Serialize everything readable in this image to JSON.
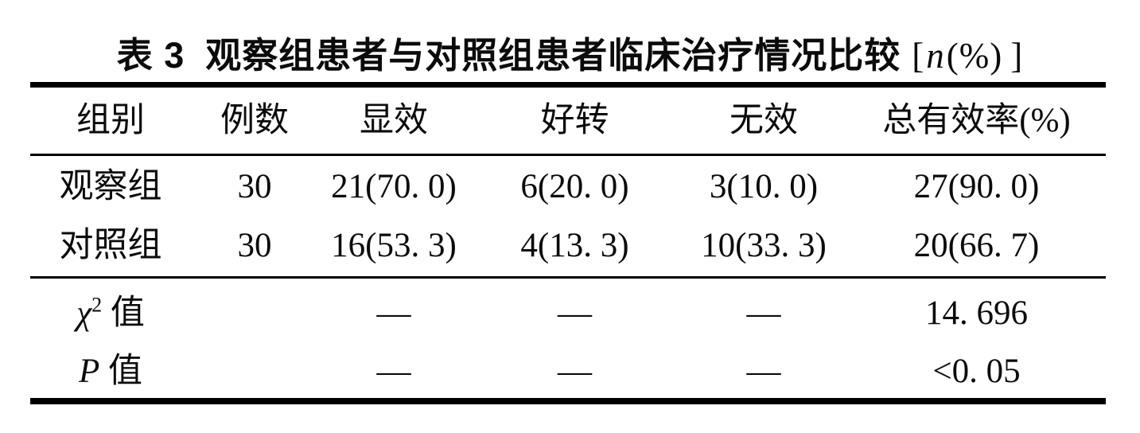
{
  "title": {
    "label": "表 3",
    "text": "观察组患者与对照组患者临床治疗情况比较",
    "bracket_open": "[",
    "unit_var": "n",
    "unit_percent": "(%)",
    "bracket_close": "]"
  },
  "table": {
    "columns": [
      "组别",
      "例数",
      "显效",
      "好转",
      "无效",
      "总有效率(%)"
    ],
    "rows": [
      {
        "cells": [
          "观察组",
          "30",
          "21(70. 0)",
          "6(20. 0)",
          "3(10. 0)",
          "27(90. 0)"
        ]
      },
      {
        "cells": [
          "对照组",
          "30",
          "16(53. 3)",
          "4(13. 3)",
          "10(33. 3)",
          "20(66. 7)"
        ]
      }
    ],
    "stat_rows": [
      {
        "symbol": "χ",
        "sup": "2",
        "suffix": " 值",
        "cells": [
          "",
          "—",
          "—",
          "—",
          "14. 696"
        ]
      },
      {
        "symbol": "P",
        "sup": "",
        "suffix": " 值",
        "cells": [
          "",
          "—",
          "—",
          "—",
          "<0. 05"
        ]
      }
    ]
  },
  "colors": {
    "text": "#0b0b0b",
    "rule": "#000000",
    "background": "#ffffff"
  }
}
